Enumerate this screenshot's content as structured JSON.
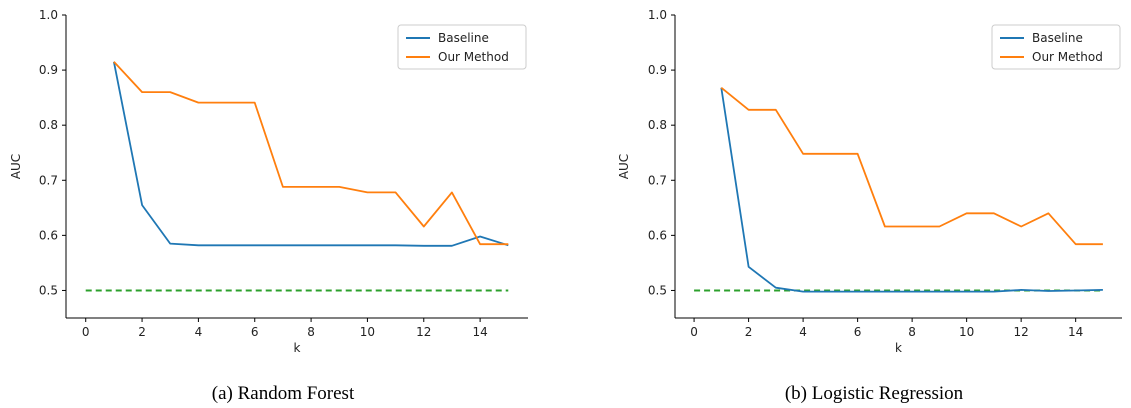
{
  "colors": {
    "baseline": "#1f77b4",
    "our_method": "#ff7f0e",
    "reference": "#2ca02c"
  },
  "chart_data": [
    {
      "type": "line",
      "caption": "(a) Random Forest",
      "xlabel": "k",
      "ylabel": "AUC",
      "xlim": [
        -0.7,
        15.7
      ],
      "ylim": [
        0.45,
        1.0
      ],
      "xticks": [
        "0",
        "2",
        "4",
        "6",
        "8",
        "10",
        "12",
        "14"
      ],
      "yticks": [
        "0.5",
        "0.6",
        "0.7",
        "0.8",
        "0.9",
        "1.0"
      ],
      "legend_position": "top-right",
      "grid": false,
      "reference_line": {
        "y": 0.5,
        "x_range": [
          0,
          15
        ],
        "style": "dashed",
        "color": "#2ca02c"
      },
      "series": [
        {
          "name": "Baseline",
          "color": "#1f77b4",
          "x": [
            1,
            2,
            3,
            4,
            5,
            6,
            7,
            8,
            9,
            10,
            11,
            12,
            13,
            14,
            15
          ],
          "values": [
            0.915,
            0.655,
            0.585,
            0.582,
            0.582,
            0.582,
            0.582,
            0.582,
            0.582,
            0.582,
            0.582,
            0.581,
            0.581,
            0.598,
            0.582
          ]
        },
        {
          "name": "Our Method",
          "color": "#ff7f0e",
          "x": [
            1,
            2,
            3,
            4,
            5,
            6,
            7,
            8,
            9,
            10,
            11,
            12,
            13,
            14,
            15
          ],
          "values": [
            0.915,
            0.86,
            0.86,
            0.841,
            0.841,
            0.841,
            0.688,
            0.688,
            0.688,
            0.678,
            0.678,
            0.616,
            0.678,
            0.584,
            0.584
          ]
        }
      ]
    },
    {
      "type": "line",
      "caption": "(b) Logistic Regression",
      "xlabel": "k",
      "ylabel": "AUC",
      "xlim": [
        -0.7,
        15.7
      ],
      "ylim": [
        0.45,
        1.0
      ],
      "xticks": [
        "0",
        "2",
        "4",
        "6",
        "8",
        "10",
        "12",
        "14"
      ],
      "yticks": [
        "0.5",
        "0.6",
        "0.7",
        "0.8",
        "0.9",
        "1.0"
      ],
      "legend_position": "top-right",
      "grid": false,
      "reference_line": {
        "y": 0.5,
        "x_range": [
          0,
          15
        ],
        "style": "dashed",
        "color": "#2ca02c"
      },
      "series": [
        {
          "name": "Baseline",
          "color": "#1f77b4",
          "x": [
            1,
            2,
            3,
            4,
            5,
            6,
            7,
            8,
            9,
            10,
            11,
            12,
            13,
            14,
            15
          ],
          "values": [
            0.868,
            0.543,
            0.505,
            0.498,
            0.498,
            0.498,
            0.498,
            0.498,
            0.498,
            0.498,
            0.498,
            0.501,
            0.499,
            0.5,
            0.501
          ]
        },
        {
          "name": "Our Method",
          "color": "#ff7f0e",
          "x": [
            1,
            2,
            3,
            4,
            5,
            6,
            7,
            8,
            9,
            10,
            11,
            12,
            13,
            14,
            15
          ],
          "values": [
            0.868,
            0.828,
            0.828,
            0.748,
            0.748,
            0.748,
            0.616,
            0.616,
            0.616,
            0.64,
            0.64,
            0.616,
            0.64,
            0.584,
            0.584
          ]
        }
      ]
    }
  ]
}
